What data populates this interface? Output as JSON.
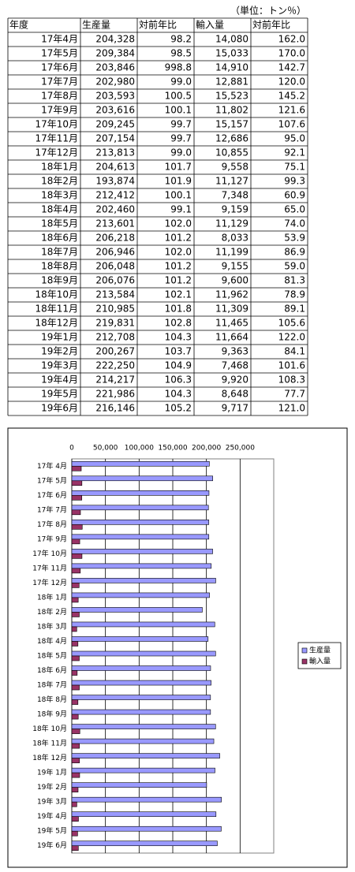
{
  "note": "（単位：トン％）",
  "table": {
    "header": [
      "年度",
      "生産量",
      "対前年比",
      "輸入量",
      "対前年比"
    ],
    "rows": [
      [
        "17年4月",
        "204,328",
        "98.2",
        "14,080",
        "162.0"
      ],
      [
        "17年5月",
        "209,384",
        "98.5",
        "15,033",
        "170.0"
      ],
      [
        "17年6月",
        "203,846",
        "998.8",
        "14,910",
        "142.7"
      ],
      [
        "17年7月",
        "202,980",
        "99.0",
        "12,881",
        "120.0"
      ],
      [
        "17年8月",
        "203,593",
        "100.5",
        "15,523",
        "145.2"
      ],
      [
        "17年9月",
        "203,616",
        "100.1",
        "11,802",
        "121.6"
      ],
      [
        "17年10月",
        "209,245",
        "99.7",
        "15,157",
        "107.6"
      ],
      [
        "17年11月",
        "207,154",
        "99.7",
        "12,686",
        "95.0"
      ],
      [
        "17年12月",
        "213,813",
        "99.0",
        "10,855",
        "92.1"
      ],
      [
        "18年1月",
        "204,613",
        "101.7",
        "9,558",
        "75.1"
      ],
      [
        "18年2月",
        "193,874",
        "101.9",
        "11,127",
        "99.3"
      ],
      [
        "18年3月",
        "212,412",
        "100.1",
        "7,348",
        "60.9"
      ],
      [
        "18年4月",
        "202,460",
        "99.1",
        "9,159",
        "65.0"
      ],
      [
        "18年5月",
        "213,601",
        "102.0",
        "11,129",
        "74.0"
      ],
      [
        "18年6月",
        "206,218",
        "101.2",
        "8,033",
        "53.9"
      ],
      [
        "18年7月",
        "206,946",
        "102.0",
        "11,199",
        "86.9"
      ],
      [
        "18年8月",
        "206,048",
        "101.2",
        "9,155",
        "59.0"
      ],
      [
        "18年9月",
        "206,076",
        "101.2",
        "9,600",
        "81.3"
      ],
      [
        "18年10月",
        "213,584",
        "102.1",
        "11,962",
        "78.9"
      ],
      [
        "18年11月",
        "210,985",
        "101.8",
        "11,309",
        "89.1"
      ],
      [
        "18年12月",
        "219,831",
        "102.8",
        "11,465",
        "105.6"
      ],
      [
        "19年1月",
        "212,708",
        "104.3",
        "11,664",
        "122.0"
      ],
      [
        "19年2月",
        "200,267",
        "103.7",
        "9,363",
        "84.1"
      ],
      [
        "19年3月",
        "222,250",
        "104.9",
        "7,468",
        "101.6"
      ],
      [
        "19年4月",
        "214,217",
        "106.3",
        "9,920",
        "108.3"
      ],
      [
        "19年5月",
        "221,986",
        "104.3",
        "8,648",
        "77.7"
      ],
      [
        "19年6月",
        "216,146",
        "105.2",
        "9,717",
        "121.0"
      ]
    ]
  },
  "chart_data": {
    "type": "barh",
    "categories": [
      "17年 4月",
      "17年 5月",
      "17年 6月",
      "17年 7月",
      "17年 8月",
      "17年 9月",
      "17年 10月",
      "17年 11月",
      "17年 12月",
      "18年 1月",
      "18年 2月",
      "18年 3月",
      "18年 4月",
      "18年 5月",
      "18年 6月",
      "18年 7月",
      "18年 8月",
      "18年 9月",
      "18年 10月",
      "18年 11月",
      "18年 12月",
      "19年 1月",
      "19年 2月",
      "19年 3月",
      "19年 4月",
      "19年 5月",
      "19年 6月"
    ],
    "series": [
      {
        "name": "生産量",
        "color": "#9999ff",
        "values": [
          204328,
          209384,
          203846,
          202980,
          203593,
          203616,
          209245,
          207154,
          213813,
          204613,
          193874,
          212412,
          202460,
          213601,
          206218,
          206946,
          206048,
          206076,
          213584,
          210985,
          219831,
          212708,
          200267,
          222250,
          214217,
          221986,
          216146
        ]
      },
      {
        "name": "輸入量",
        "color": "#993366",
        "values": [
          14080,
          15033,
          14910,
          12881,
          15523,
          11802,
          15157,
          12686,
          10855,
          9558,
          11127,
          7348,
          9159,
          11129,
          8033,
          11199,
          9155,
          9600,
          11962,
          11309,
          11465,
          11664,
          9363,
          7468,
          9920,
          8648,
          9717
        ]
      }
    ],
    "xlim": [
      0,
      300000
    ],
    "xticks": [
      0,
      {
        "value": 50000,
        "label": "50,000"
      },
      {
        "value": 100000,
        "label": "100,000"
      },
      {
        "value": 150000,
        "label": "150,000"
      },
      {
        "value": 200000,
        "label": "200,000"
      },
      {
        "value": 250000,
        "label": "250,000"
      }
    ],
    "grid": true,
    "legend": "right"
  }
}
